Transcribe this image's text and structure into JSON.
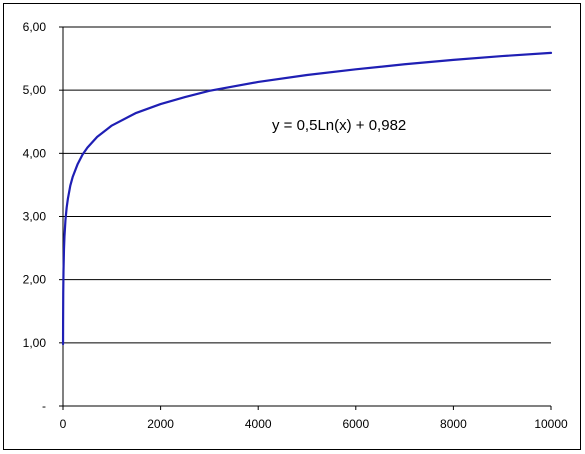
{
  "chart_data": {
    "type": "line",
    "title": "",
    "xlabel": "",
    "ylabel": "",
    "xlim": [
      0,
      10000
    ],
    "ylim": [
      0,
      6
    ],
    "x_ticks": [
      0,
      2000,
      4000,
      6000,
      8000,
      10000
    ],
    "x_tick_labels": [
      "0",
      "2000",
      "4000",
      "6000",
      "8000",
      "10000"
    ],
    "y_ticks": [
      0,
      1,
      2,
      3,
      4,
      5,
      6
    ],
    "y_tick_labels": [
      "-",
      "1,00",
      "2,00",
      "3,00",
      "4,00",
      "5,00",
      "6,00"
    ],
    "grid": "horizontal",
    "legend": "none",
    "series": [
      {
        "color": "#1f1fb4",
        "x": [
          1,
          2,
          5,
          10,
          20,
          30,
          50,
          75,
          100,
          150,
          200,
          300,
          400,
          500,
          700,
          1000,
          1500,
          2000,
          2500,
          3000,
          4000,
          5000,
          6000,
          7000,
          8000,
          9000,
          10000
        ],
        "y": [
          0.98,
          1.33,
          1.79,
          2.13,
          2.48,
          2.68,
          2.94,
          3.14,
          3.28,
          3.49,
          3.63,
          3.83,
          3.98,
          4.09,
          4.26,
          4.44,
          4.64,
          4.78,
          4.89,
          4.99,
          5.13,
          5.24,
          5.33,
          5.41,
          5.48,
          5.54,
          5.59
        ]
      }
    ],
    "annotations": [
      {
        "text": "y = 0,5Ln(x) + 0,982"
      }
    ]
  }
}
